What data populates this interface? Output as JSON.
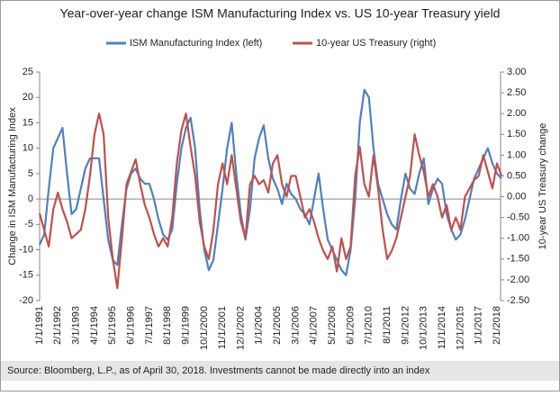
{
  "chart_data": {
    "type": "line",
    "title": "Year-over-year change ISM Manufacturing Index vs. US 10-year Treasury yield",
    "ylabel": "Change in ISM Manufacturing Index",
    "y2label": "10-year US Treasury change",
    "footnote": "Source: Bloomberg, L.P., as of April 30, 2018. Investments cannot be made directly into an index",
    "legend": "top",
    "categories": [
      "1/1/1991",
      null,
      null,
      null,
      "2/1/1992",
      null,
      null,
      null,
      "3/1/1993",
      null,
      null,
      null,
      "4/1/1994",
      null,
      null,
      null,
      "5/1/1995",
      null,
      null,
      null,
      "6/1/1996",
      null,
      null,
      null,
      "7/1/1997",
      null,
      null,
      null,
      "8/1/1998",
      null,
      null,
      null,
      "9/1/1999",
      null,
      null,
      null,
      "10/1/2000",
      null,
      null,
      null,
      "11/1/2001",
      null,
      null,
      null,
      "12/1/2002",
      null,
      null,
      null,
      "1/1/2004",
      null,
      null,
      null,
      "2/1/2005",
      null,
      null,
      null,
      "3/1/2006",
      null,
      null,
      null,
      "4/1/2007",
      null,
      null,
      null,
      "5/1/2008",
      null,
      null,
      null,
      "6/1/2009",
      null,
      null,
      null,
      "7/1/2010",
      null,
      null,
      null,
      "8/1/2011",
      null,
      null,
      null,
      "9/1/2012",
      null,
      null,
      null,
      "10/1/2013",
      null,
      null,
      null,
      "11/1/2014",
      null,
      null,
      null,
      "12/1/2015",
      null,
      null,
      null,
      "1/1/2017",
      null,
      null,
      null,
      "2/1/2018",
      null
    ],
    "ylim": [
      -20,
      25
    ],
    "yticks": [
      -20,
      -15,
      -10,
      -5,
      0,
      5,
      10,
      15,
      20,
      25
    ],
    "y2lim": [
      -2.5,
      3
    ],
    "y2ticks": [
      {
        "value": -2.5,
        "label": "-2.50"
      },
      {
        "value": -2,
        "label": "-2.00"
      },
      {
        "value": -1.5,
        "label": "-1.50"
      },
      {
        "value": -1,
        "label": "-1.00"
      },
      {
        "value": -0.5,
        "label": "-0.50"
      },
      {
        "value": 0,
        "label": "0.00"
      },
      {
        "value": 0.5,
        "label": "0.50"
      },
      {
        "value": 1,
        "label": "1.00"
      },
      {
        "value": 1.5,
        "label": "1.50"
      },
      {
        "value": 2,
        "label": "2.00"
      },
      {
        "value": 2.5,
        "label": "2.50"
      },
      {
        "value": 3,
        "label": "3.00"
      }
    ],
    "series": [
      {
        "name": "ISM Manufacturing Index (left)",
        "color": "#4f81bd",
        "axis": "y",
        "values": [
          -9,
          -7,
          2,
          10,
          12,
          14,
          5,
          -3,
          -2,
          2,
          6,
          8,
          8,
          8,
          0,
          -8,
          -12,
          -13,
          -5,
          2,
          5,
          6,
          4,
          3,
          3,
          0,
          -4,
          -7,
          -8,
          -6,
          3,
          10,
          14,
          16,
          10,
          -2,
          -10,
          -14,
          -12,
          -5,
          2,
          10,
          15,
          5,
          -3,
          -8,
          -2,
          8,
          12,
          14.5,
          8,
          4,
          2,
          -1,
          3,
          1,
          0,
          -2,
          -3,
          -5,
          0,
          5,
          -2,
          -8,
          -10,
          -12,
          -14,
          -15,
          -10,
          0,
          15,
          21.5,
          20,
          10,
          3,
          0,
          -3,
          -5,
          -6,
          0,
          5,
          2,
          1,
          5,
          8,
          -1,
          2,
          4,
          3,
          -3,
          -6,
          -8,
          -7,
          -4,
          0,
          4,
          6,
          8,
          10,
          7,
          5,
          4
        ]
      },
      {
        "name": "10-year US Treasury (right)",
        "color": "#c0504d",
        "axis": "y2",
        "values": [
          -0.4,
          -0.8,
          -1.2,
          -0.3,
          0.1,
          -0.3,
          -0.6,
          -1.0,
          -0.9,
          -0.8,
          -0.3,
          0.5,
          1.5,
          2.0,
          1.5,
          -0.5,
          -1.5,
          -2.2,
          -1.0,
          0.3,
          0.6,
          0.9,
          0.3,
          -0.2,
          -0.5,
          -0.9,
          -1.2,
          -1.0,
          -1.2,
          -0.5,
          0.8,
          1.6,
          2.0,
          1.2,
          0.5,
          -0.6,
          -1.2,
          -1.5,
          -0.8,
          0.3,
          0.8,
          0.3,
          1.0,
          0.2,
          -0.6,
          -1.0,
          0.3,
          0.5,
          0.3,
          0.4,
          0.1,
          0.8,
          1.0,
          0.3,
          0.0,
          0.5,
          0.5,
          0.0,
          -0.5,
          -0.3,
          -0.6,
          -1.0,
          -1.3,
          -1.5,
          -1.2,
          -1.8,
          -1.0,
          -1.5,
          -1.2,
          0.5,
          1.2,
          0.3,
          0.0,
          1.0,
          0.2,
          -0.8,
          -1.5,
          -1.3,
          -1.0,
          -0.5,
          0.0,
          0.5,
          1.5,
          1.0,
          0.6,
          0.0,
          0.3,
          0.0,
          -0.5,
          -0.2,
          -0.8,
          -0.5,
          -0.8,
          0.0,
          0.2,
          0.4,
          0.5,
          1.0,
          0.6,
          0.2,
          0.8,
          0.5
        ]
      }
    ]
  }
}
